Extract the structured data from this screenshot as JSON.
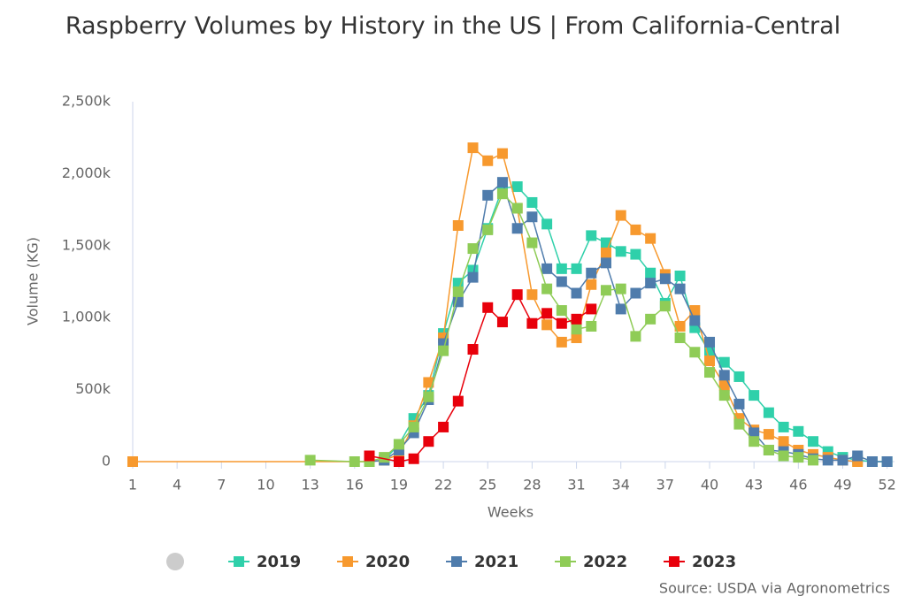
{
  "chart_data": {
    "type": "line",
    "title": "Raspberry Volumes by History in the US | From California-Central",
    "x_label": "Weeks",
    "y_label": "Volume (KG)",
    "source": "Source: USDA via Agronometrics",
    "xlim": [
      1,
      52.5
    ],
    "xticks": [
      1,
      4,
      7,
      10,
      13,
      16,
      19,
      22,
      25,
      28,
      31,
      34,
      37,
      40,
      43,
      46,
      49,
      52
    ],
    "ylim": [
      0,
      2500000
    ],
    "yticks": [
      0,
      {
        "value": 500000,
        "label": "500k"
      },
      {
        "value": 1000000,
        "label": "1,000k"
      },
      {
        "value": 1500000,
        "label": "1,500k"
      },
      {
        "value": 2000000,
        "label": "2,000k"
      },
      {
        "value": 2500000,
        "label": "2,500k"
      }
    ],
    "series": [
      {
        "name": "2019",
        "color": "#2fd0aa",
        "x": [
          18,
          19,
          20,
          21,
          22,
          23,
          24,
          25,
          26,
          27,
          28,
          29,
          30,
          31,
          32,
          33,
          34,
          35,
          36,
          37,
          38,
          39,
          40,
          41,
          42,
          43,
          44,
          45,
          46,
          47,
          48,
          49,
          50,
          51,
          52
        ],
        "values": [
          10000,
          120000,
          300000,
          460000,
          890000,
          1240000,
          1330000,
          1620000,
          1900000,
          1910000,
          1800000,
          1650000,
          1340000,
          1340000,
          1570000,
          1520000,
          1460000,
          1440000,
          1310000,
          1100000,
          1290000,
          930000,
          760000,
          690000,
          590000,
          460000,
          340000,
          240000,
          210000,
          140000,
          70000,
          30000,
          10000,
          0,
          0
        ]
      },
      {
        "name": "2020",
        "color": "#f7992e",
        "x": [
          1,
          17,
          18,
          19,
          20,
          21,
          22,
          23,
          24,
          25,
          26,
          27,
          28,
          29,
          30,
          31,
          32,
          33,
          34,
          35,
          36,
          37,
          38,
          39,
          40,
          41,
          42,
          43,
          44,
          45,
          46,
          47,
          48,
          49,
          50
        ],
        "values": [
          0,
          0,
          10000,
          50000,
          250000,
          550000,
          860000,
          1640000,
          2180000,
          2090000,
          2140000,
          1760000,
          1160000,
          950000,
          830000,
          860000,
          1230000,
          1450000,
          1710000,
          1610000,
          1550000,
          1300000,
          940000,
          1050000,
          700000,
          530000,
          300000,
          220000,
          190000,
          140000,
          80000,
          50000,
          30000,
          10000,
          0
        ]
      },
      {
        "name": "2021",
        "color": "#4f7cac",
        "x": [
          17,
          18,
          19,
          20,
          21,
          22,
          23,
          24,
          25,
          26,
          27,
          28,
          29,
          30,
          31,
          32,
          33,
          34,
          35,
          36,
          37,
          38,
          39,
          40,
          41,
          42,
          43,
          44,
          45,
          46,
          47,
          48,
          49,
          50,
          51,
          52
        ],
        "values": [
          0,
          10000,
          80000,
          200000,
          430000,
          820000,
          1110000,
          1280000,
          1850000,
          1940000,
          1620000,
          1700000,
          1340000,
          1250000,
          1170000,
          1310000,
          1380000,
          1060000,
          1170000,
          1240000,
          1270000,
          1200000,
          980000,
          830000,
          600000,
          400000,
          200000,
          80000,
          70000,
          50000,
          20000,
          10000,
          10000,
          40000,
          0,
          0
        ]
      },
      {
        "name": "2022",
        "color": "#8fcc57",
        "x": [
          13,
          16,
          17,
          18,
          19,
          20,
          21,
          22,
          23,
          24,
          25,
          26,
          27,
          28,
          29,
          30,
          31,
          32,
          33,
          34,
          35,
          36,
          37,
          38,
          39,
          40,
          41,
          42,
          43,
          44,
          45,
          46,
          47
        ],
        "values": [
          10000,
          0,
          0,
          30000,
          120000,
          240000,
          450000,
          770000,
          1180000,
          1480000,
          1610000,
          1860000,
          1760000,
          1520000,
          1200000,
          1050000,
          920000,
          940000,
          1190000,
          1200000,
          870000,
          990000,
          1080000,
          860000,
          760000,
          620000,
          460000,
          260000,
          140000,
          80000,
          40000,
          30000,
          10000
        ]
      },
      {
        "name": "2023",
        "color": "#e8000b",
        "x": [
          17,
          19,
          20,
          21,
          22,
          23,
          24,
          25,
          26,
          27,
          28,
          29,
          30,
          31,
          32
        ],
        "values": [
          40000,
          0,
          20000,
          140000,
          240000,
          420000,
          780000,
          1070000,
          970000,
          1160000,
          960000,
          1030000,
          960000,
          990000,
          1060000
        ]
      }
    ]
  }
}
